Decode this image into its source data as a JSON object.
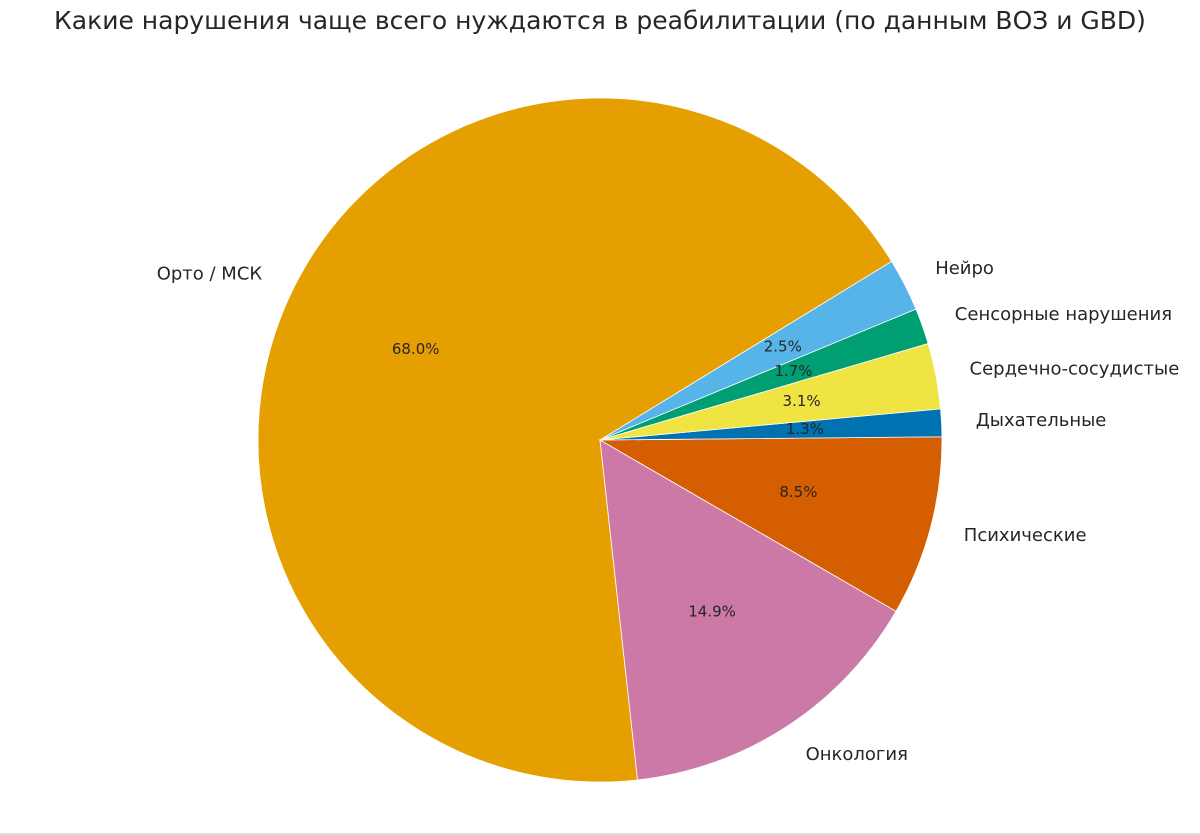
{
  "chart_data": {
    "type": "pie",
    "title": "Какие нарушения чаще всего нуждаются в реабилитации (по данным ВОЗ и GBD)",
    "slices": [
      {
        "label": "Нейро",
        "value": 2.5,
        "pct_label": "2.5%",
        "color": "#56b4e9"
      },
      {
        "label": "Орто / МСК",
        "value": 68.0,
        "pct_label": "68.0%",
        "color": "#e69f00"
      },
      {
        "label": "Онкология",
        "value": 14.9,
        "pct_label": "14.9%",
        "color": "#cc79a7"
      },
      {
        "label": "Психические",
        "value": 8.5,
        "pct_label": "8.5%",
        "color": "#d55e00"
      },
      {
        "label": "Дыхательные",
        "value": 1.3,
        "pct_label": "1.3%",
        "color": "#0072b2"
      },
      {
        "label": "Сердечно-сосудистые",
        "value": 3.1,
        "pct_label": "3.1%",
        "color": "#f0e442"
      },
      {
        "label": "Сенсорные нарушения",
        "value": 1.7,
        "pct_label": "1.7%",
        "color": "#009e73"
      }
    ],
    "start_angle_deg": 22.5,
    "direction": "counterclockwise",
    "legend": "none"
  }
}
